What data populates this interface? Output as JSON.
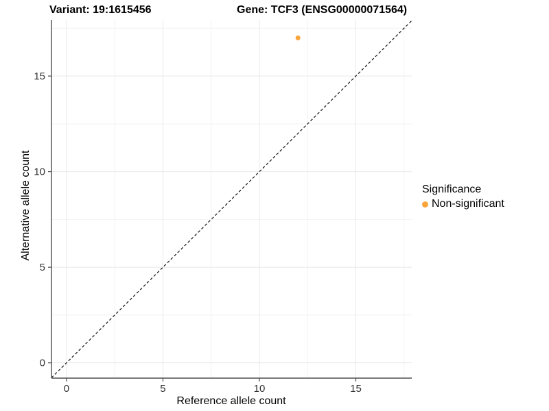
{
  "chart_data": {
    "type": "scatter",
    "titles": {
      "variant": "Variant: 19:1615456",
      "gene": "Gene: TCF3 (ENSG00000071564)"
    },
    "xlabel": "Reference allele count",
    "ylabel": "Alternative allele count",
    "xlim": [
      -0.78,
      17.9
    ],
    "ylim": [
      -0.8,
      17.94
    ],
    "xticks": [
      0,
      5,
      10,
      15
    ],
    "yticks": [
      0,
      5,
      10,
      15
    ],
    "xticks_minor": [
      2.5,
      7.5,
      12.5,
      17.5
    ],
    "yticks_minor": [
      2.5,
      7.5,
      12.5,
      17.5
    ],
    "grid": true,
    "series": [
      {
        "name": "Non-significant",
        "marker": "circle",
        "color": "#FAA43C",
        "points": [
          {
            "x": 12,
            "y": 17
          }
        ]
      }
    ],
    "reference_line": {
      "kind": "identity y = x",
      "style": "dashed",
      "color": "#111111",
      "from": [
        -0.78,
        -0.78
      ],
      "to": [
        17.9,
        17.9
      ]
    },
    "legend": {
      "title": "Significance",
      "position": "right",
      "entries": [
        {
          "label": "Non-significant",
          "color": "#FAA43C"
        }
      ]
    },
    "colors": {
      "grid_major": "#E8E8E8",
      "grid_minor": "#F2F2F2",
      "axis_line": "#4D4D4D",
      "tick_label": "#303030",
      "background": "#FFFFFF"
    }
  }
}
